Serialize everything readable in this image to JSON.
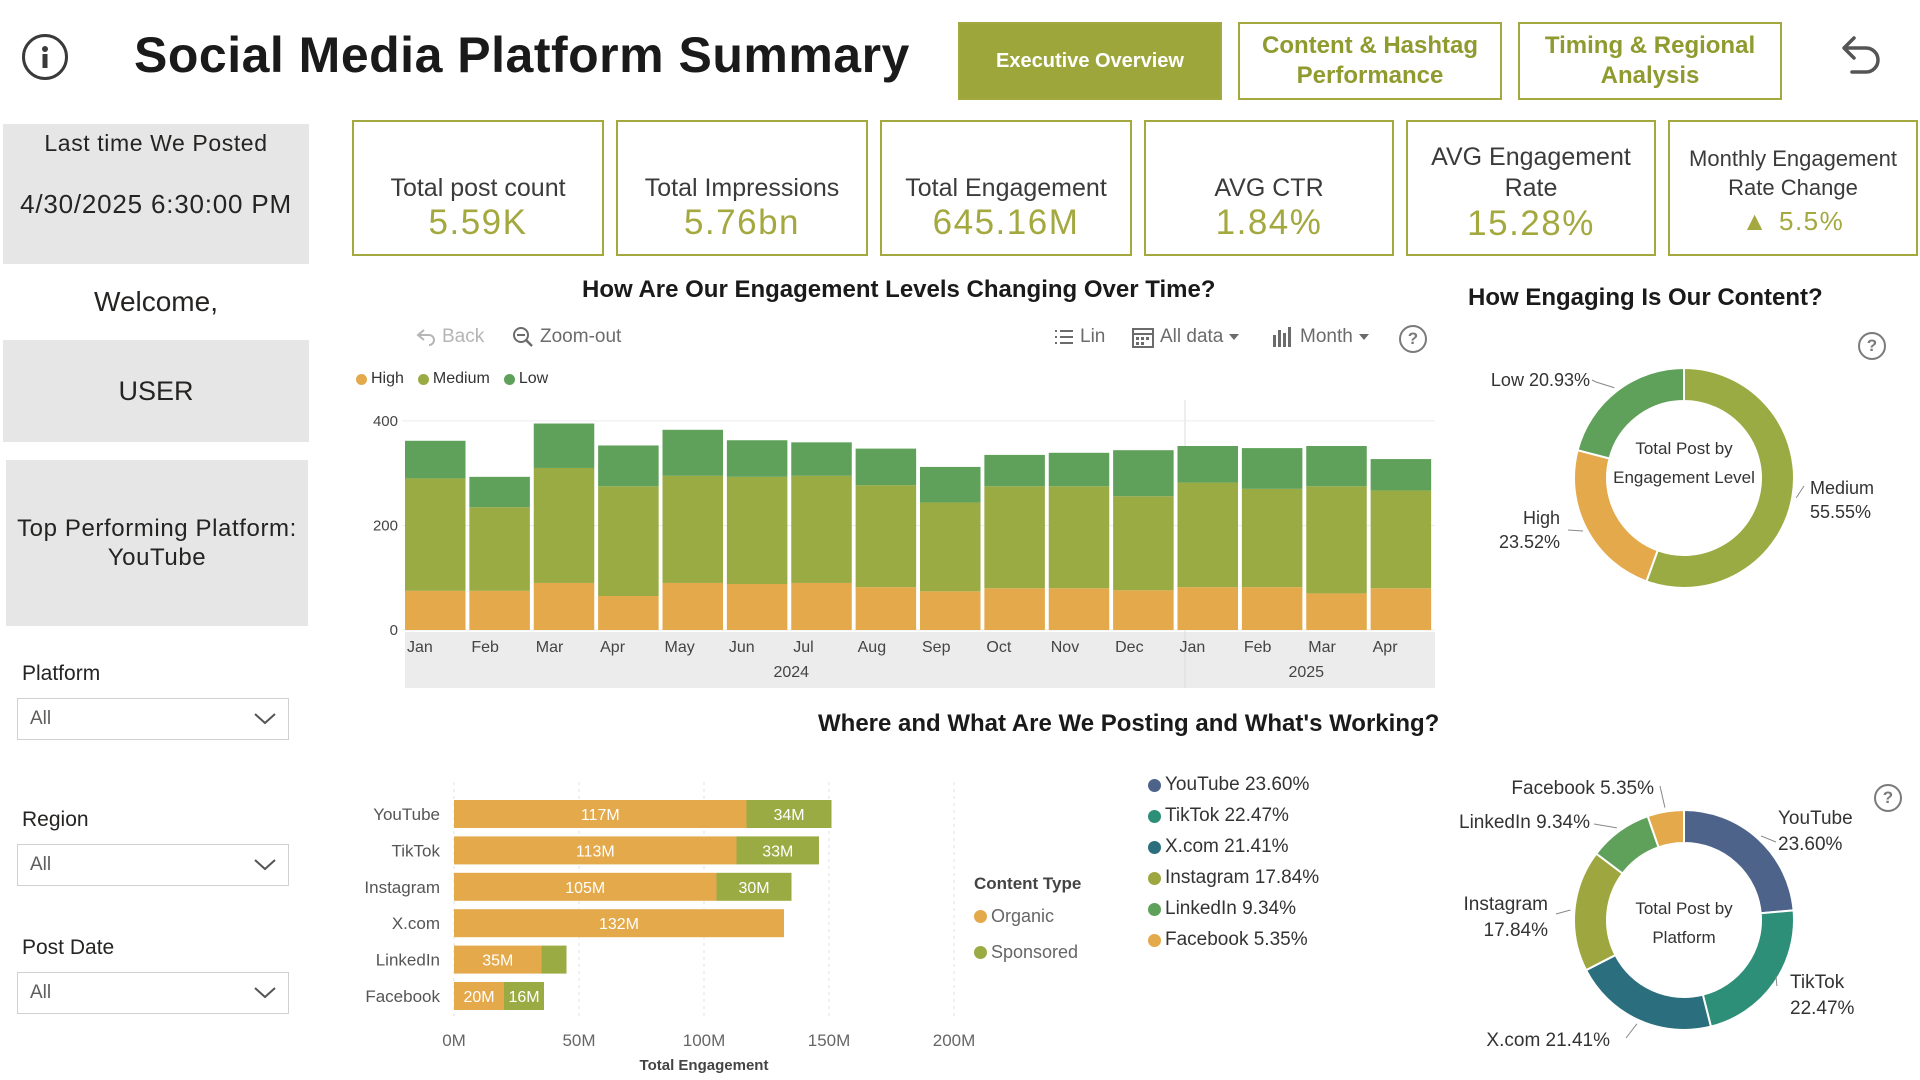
{
  "header": {
    "title": "Social Media Platform Summary",
    "nav": [
      {
        "label": "Executive Overview",
        "active": true
      },
      {
        "label": "Content & Hashtag Performance",
        "active": false
      },
      {
        "label": "Timing & Regional Analysis",
        "active": false
      }
    ]
  },
  "left_panel": {
    "last_posted_label": "Last time We Posted",
    "last_posted_value": "4/30/2025 6:30:00 PM",
    "welcome": "Welcome,",
    "user": "USER",
    "top_platform": "Top Performing Platform: YouTube",
    "slicers": [
      {
        "label": "Platform",
        "value": "All"
      },
      {
        "label": "Region",
        "value": "All"
      },
      {
        "label": "Post Date",
        "value": "All"
      }
    ]
  },
  "kpis": [
    {
      "label": "Total post count",
      "value": "5.59K"
    },
    {
      "label": "Total Impressions",
      "value": "5.76bn"
    },
    {
      "label": "Total Engagement",
      "value": "645.16M"
    },
    {
      "label": "AVG CTR",
      "value": "1.84%"
    },
    {
      "label": "AVG Engagement Rate",
      "value": "15.28%"
    },
    {
      "label": "Monthly Engagement Rate Change",
      "value": "5.5%",
      "arrow": "▲"
    }
  ],
  "colors": {
    "accent": "#9da63b",
    "high": "#e3a94b",
    "medium": "#9aab44",
    "low": "#5fa15a",
    "organic": "#e3a94b",
    "sponsored": "#9aab44",
    "youtube": "#4d6389",
    "tiktok": "#2e8f78",
    "xcom": "#2b6f7e",
    "instagram": "#9ea73f",
    "linkedin": "#5fa15a",
    "facebook": "#e3a94b"
  },
  "engagement_chart": {
    "title": "How Are Our Engagement Levels Changing Over Time?",
    "toolbar": {
      "back": "Back",
      "zoom_out": "Zoom-out",
      "lin": "Lin",
      "all_data": "All data",
      "month": "Month"
    }
  },
  "content_donut": {
    "title": "How Engaging Is Our Content?"
  },
  "platform_section": {
    "title": "Where and What Are We Posting and What's Working?"
  },
  "chart_data": [
    {
      "type": "bar",
      "stacked": true,
      "title": "How Are Our Engagement Levels Changing Over Time?",
      "categories": [
        "Jan",
        "Feb",
        "Mar",
        "Apr",
        "May",
        "Jun",
        "Jul",
        "Aug",
        "Sep",
        "Oct",
        "Nov",
        "Dec",
        "Jan",
        "Feb",
        "Mar",
        "Apr"
      ],
      "year_labels": [
        {
          "label": "2024",
          "start": 0,
          "end": 11
        },
        {
          "label": "2025",
          "start": 12,
          "end": 15
        }
      ],
      "series": [
        {
          "name": "High",
          "values": [
            75,
            75,
            90,
            65,
            90,
            88,
            90,
            82,
            74,
            80,
            80,
            76,
            82,
            82,
            70,
            80
          ]
        },
        {
          "name": "Medium",
          "values": [
            215,
            160,
            220,
            210,
            205,
            205,
            205,
            195,
            170,
            195,
            195,
            180,
            200,
            188,
            205,
            187
          ]
        },
        {
          "name": "Low",
          "values": [
            72,
            58,
            85,
            78,
            88,
            70,
            64,
            70,
            68,
            60,
            64,
            88,
            70,
            78,
            77,
            60
          ]
        }
      ],
      "yticks": [
        0,
        200,
        400
      ],
      "ylim": [
        0,
        440
      ],
      "legend": [
        "High",
        "Medium",
        "Low"
      ]
    },
    {
      "type": "pie",
      "donut": true,
      "title": "How Engaging Is Our Content?",
      "center_label": "Total Post by Engagement Level",
      "slices": [
        {
          "name": "Medium",
          "value": 55.55,
          "label": "55.55%"
        },
        {
          "name": "High",
          "value": 23.52,
          "label": "23.52%"
        },
        {
          "name": "Low",
          "value": 20.93,
          "label": "20.93%"
        }
      ]
    },
    {
      "type": "bar",
      "orientation": "horizontal",
      "stacked": true,
      "categories": [
        "YouTube",
        "TikTok",
        "Instagram",
        "X.com",
        "LinkedIn",
        "Facebook"
      ],
      "series": [
        {
          "name": "Organic",
          "values": [
            117,
            113,
            105,
            132,
            35,
            20
          ],
          "labels": [
            "117M",
            "113M",
            "105M",
            "132M",
            "35M",
            "20M"
          ]
        },
        {
          "name": "Sponsored",
          "values": [
            34,
            33,
            30,
            0,
            10,
            16
          ],
          "labels": [
            "34M",
            "33M",
            "30M",
            "",
            "",
            "16M"
          ]
        }
      ],
      "xticks": [
        "0M",
        "50M",
        "100M",
        "150M",
        "200M"
      ],
      "xlim": [
        0,
        200
      ],
      "xlabel": "Total Engagement",
      "legend_title": "Content Type",
      "legend": [
        "Organic",
        "Sponsored"
      ]
    },
    {
      "type": "pie",
      "donut": true,
      "center_label": "Total Post by Platform",
      "slices": [
        {
          "name": "YouTube",
          "value": 23.6,
          "label": "23.60%"
        },
        {
          "name": "TikTok",
          "value": 22.47,
          "label": "22.47%"
        },
        {
          "name": "X.com",
          "value": 21.41,
          "label": "21.41%"
        },
        {
          "name": "Instagram",
          "value": 17.84,
          "label": "17.84%"
        },
        {
          "name": "LinkedIn",
          "value": 9.34,
          "label": "9.34%"
        },
        {
          "name": "Facebook",
          "value": 5.35,
          "label": "5.35%"
        }
      ],
      "legend": [
        "YouTube 23.60%",
        "TikTok 22.47%",
        "X.com 21.41%",
        "Instagram 17.84%",
        "LinkedIn 9.34%",
        "Facebook 5.35%"
      ]
    }
  ]
}
